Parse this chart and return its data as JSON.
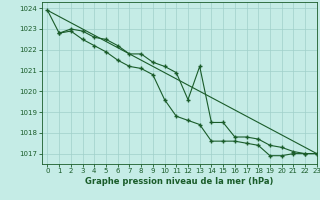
{
  "title": "Graphe pression niveau de la mer (hPa)",
  "bg_color": "#c5ece6",
  "grid_color": "#a0d0ca",
  "line_color": "#1a5c2a",
  "xlim": [
    -0.5,
    23
  ],
  "ylim": [
    1016.5,
    1024.3
  ],
  "yticks": [
    1017,
    1018,
    1019,
    1020,
    1021,
    1022,
    1023,
    1024
  ],
  "xticks": [
    0,
    1,
    2,
    3,
    4,
    5,
    6,
    7,
    8,
    9,
    10,
    11,
    12,
    13,
    14,
    15,
    16,
    17,
    18,
    19,
    20,
    21,
    22,
    23
  ],
  "line1_x": [
    0,
    23
  ],
  "line1_y": [
    1023.9,
    1017.0
  ],
  "line2_x": [
    0,
    1,
    2,
    3,
    4,
    5,
    6,
    7,
    8,
    9,
    10,
    11,
    12,
    13,
    14,
    15,
    16,
    17,
    18,
    19,
    20,
    21,
    22,
    23
  ],
  "line2_y": [
    1023.9,
    1022.8,
    1022.9,
    1022.5,
    1022.2,
    1021.9,
    1021.5,
    1021.2,
    1021.1,
    1020.8,
    1019.6,
    1018.8,
    1018.6,
    1018.4,
    1017.6,
    1017.6,
    1017.6,
    1017.5,
    1017.4,
    1016.9,
    1016.9,
    1017.0,
    1017.0,
    1017.0
  ],
  "line3_x": [
    1,
    2,
    3,
    4,
    5,
    6,
    7,
    8,
    9,
    10,
    11,
    12,
    13,
    14,
    15,
    16,
    17,
    18,
    19,
    20,
    21,
    22,
    23
  ],
  "line3_y": [
    1022.8,
    1023.0,
    1022.9,
    1022.6,
    1022.5,
    1022.2,
    1021.8,
    1021.8,
    1021.4,
    1021.2,
    1020.9,
    1019.6,
    1021.2,
    1018.5,
    1018.5,
    1017.8,
    1017.8,
    1017.7,
    1017.4,
    1017.3,
    1017.1,
    1017.0,
    1017.0
  ]
}
